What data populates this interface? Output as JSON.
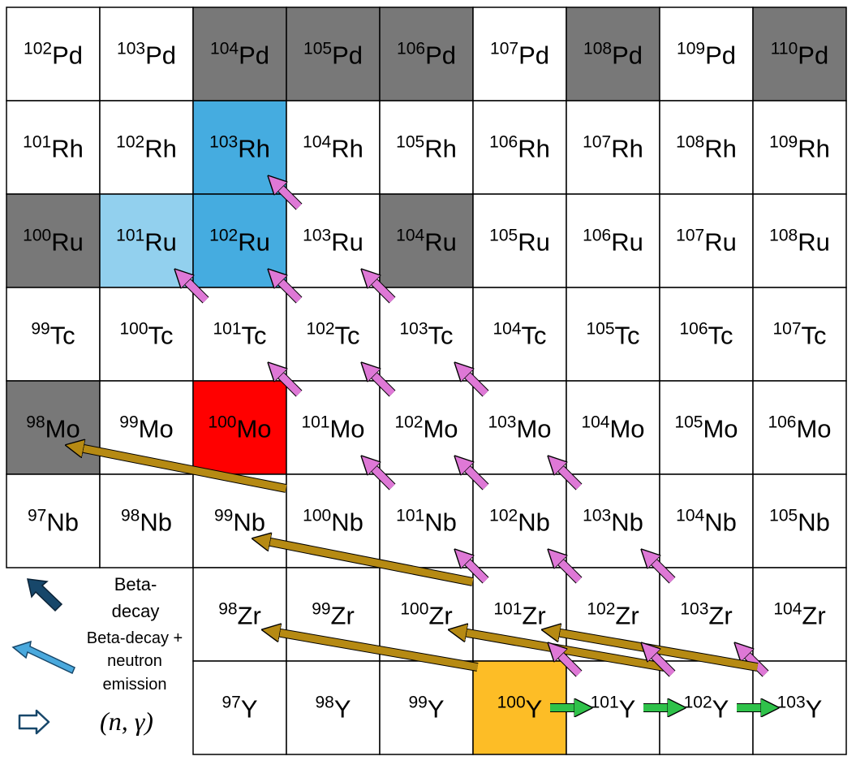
{
  "colors": {
    "stable": "#787878",
    "product_dark": "#45ace0",
    "product_light": "#92d0ee",
    "target": "#ff0000",
    "start": "#fdbd26",
    "empty": "#ffffff",
    "grid": "#000000",
    "arrow_beta": "#de78d6",
    "arrow_beta_n": "#b68a13",
    "arrow_ng": "#2fc24a",
    "legend_beta": "#17476a",
    "legend_beta_n": "#4aa9dd",
    "legend_ng_stroke": "#17476a"
  },
  "rows": [
    {
      "element": "Pd",
      "cells": [
        {
          "mass": "102",
          "symbol": "Pd",
          "fill": "empty"
        },
        {
          "mass": "103",
          "symbol": "Pd",
          "fill": "empty"
        },
        {
          "mass": "104",
          "symbol": "Pd",
          "fill": "stable"
        },
        {
          "mass": "105",
          "symbol": "Pd",
          "fill": "stable"
        },
        {
          "mass": "106",
          "symbol": "Pd",
          "fill": "stable"
        },
        {
          "mass": "107",
          "symbol": "Pd",
          "fill": "empty"
        },
        {
          "mass": "108",
          "symbol": "Pd",
          "fill": "stable"
        },
        {
          "mass": "109",
          "symbol": "Pd",
          "fill": "empty"
        },
        {
          "mass": "110",
          "symbol": "Pd",
          "fill": "stable"
        }
      ]
    },
    {
      "element": "Rh",
      "cells": [
        {
          "mass": "101",
          "symbol": "Rh",
          "fill": "empty"
        },
        {
          "mass": "102",
          "symbol": "Rh",
          "fill": "empty"
        },
        {
          "mass": "103",
          "symbol": "Rh",
          "fill": "product_dark"
        },
        {
          "mass": "104",
          "symbol": "Rh",
          "fill": "empty"
        },
        {
          "mass": "105",
          "symbol": "Rh",
          "fill": "empty"
        },
        {
          "mass": "106",
          "symbol": "Rh",
          "fill": "empty"
        },
        {
          "mass": "107",
          "symbol": "Rh",
          "fill": "empty"
        },
        {
          "mass": "108",
          "symbol": "Rh",
          "fill": "empty"
        },
        {
          "mass": "109",
          "symbol": "Rh",
          "fill": "empty"
        }
      ]
    },
    {
      "element": "Ru",
      "cells": [
        {
          "mass": "100",
          "symbol": "Ru",
          "fill": "stable"
        },
        {
          "mass": "101",
          "symbol": "Ru",
          "fill": "product_light"
        },
        {
          "mass": "102",
          "symbol": "Ru",
          "fill": "product_dark"
        },
        {
          "mass": "103",
          "symbol": "Ru",
          "fill": "empty"
        },
        {
          "mass": "104",
          "symbol": "Ru",
          "fill": "stable"
        },
        {
          "mass": "105",
          "symbol": "Ru",
          "fill": "empty"
        },
        {
          "mass": "106",
          "symbol": "Ru",
          "fill": "empty"
        },
        {
          "mass": "107",
          "symbol": "Ru",
          "fill": "empty"
        },
        {
          "mass": "108",
          "symbol": "Ru",
          "fill": "empty"
        }
      ]
    },
    {
      "element": "Tc",
      "cells": [
        {
          "mass": "99",
          "symbol": "Tc",
          "fill": "empty"
        },
        {
          "mass": "100",
          "symbol": "Tc",
          "fill": "empty"
        },
        {
          "mass": "101",
          "symbol": "Tc",
          "fill": "empty"
        },
        {
          "mass": "102",
          "symbol": "Tc",
          "fill": "empty"
        },
        {
          "mass": "103",
          "symbol": "Tc",
          "fill": "empty"
        },
        {
          "mass": "104",
          "symbol": "Tc",
          "fill": "empty"
        },
        {
          "mass": "105",
          "symbol": "Tc",
          "fill": "empty"
        },
        {
          "mass": "106",
          "symbol": "Tc",
          "fill": "empty"
        },
        {
          "mass": "107",
          "symbol": "Tc",
          "fill": "empty"
        }
      ]
    },
    {
      "element": "Mo",
      "cells": [
        {
          "mass": "98",
          "symbol": "Mo",
          "fill": "stable"
        },
        {
          "mass": "99",
          "symbol": "Mo",
          "fill": "empty"
        },
        {
          "mass": "100",
          "symbol": "Mo",
          "fill": "target"
        },
        {
          "mass": "101",
          "symbol": "Mo",
          "fill": "empty"
        },
        {
          "mass": "102",
          "symbol": "Mo",
          "fill": "empty"
        },
        {
          "mass": "103",
          "symbol": "Mo",
          "fill": "empty"
        },
        {
          "mass": "104",
          "symbol": "Mo",
          "fill": "empty"
        },
        {
          "mass": "105",
          "symbol": "Mo",
          "fill": "empty"
        },
        {
          "mass": "106",
          "symbol": "Mo",
          "fill": "empty"
        }
      ]
    },
    {
      "element": "Nb",
      "cells": [
        {
          "mass": "97",
          "symbol": "Nb",
          "fill": "empty"
        },
        {
          "mass": "98",
          "symbol": "Nb",
          "fill": "empty"
        },
        {
          "mass": "99",
          "symbol": "Nb",
          "fill": "empty"
        },
        {
          "mass": "100",
          "symbol": "Nb",
          "fill": "empty"
        },
        {
          "mass": "101",
          "symbol": "Nb",
          "fill": "empty"
        },
        {
          "mass": "102",
          "symbol": "Nb",
          "fill": "empty"
        },
        {
          "mass": "103",
          "symbol": "Nb",
          "fill": "empty"
        },
        {
          "mass": "104",
          "symbol": "Nb",
          "fill": "empty"
        },
        {
          "mass": "105",
          "symbol": "Nb",
          "fill": "empty"
        }
      ]
    },
    {
      "element": "Zr",
      "cells": [
        {
          "mass": "98",
          "symbol": "Zr",
          "fill": "empty"
        },
        {
          "mass": "99",
          "symbol": "Zr",
          "fill": "empty"
        },
        {
          "mass": "100",
          "symbol": "Zr",
          "fill": "empty"
        },
        {
          "mass": "101",
          "symbol": "Zr",
          "fill": "empty"
        },
        {
          "mass": "102",
          "symbol": "Zr",
          "fill": "empty"
        },
        {
          "mass": "103",
          "symbol": "Zr",
          "fill": "empty"
        },
        {
          "mass": "104",
          "symbol": "Zr",
          "fill": "empty"
        }
      ]
    },
    {
      "element": "Y",
      "cells": [
        {
          "mass": "97",
          "symbol": "Y",
          "fill": "empty"
        },
        {
          "mass": "98",
          "symbol": "Y",
          "fill": "empty"
        },
        {
          "mass": "99",
          "symbol": "Y",
          "fill": "empty"
        },
        {
          "mass": "100",
          "symbol": "Y",
          "fill": "start"
        },
        {
          "mass": "101",
          "symbol": "Y",
          "fill": "empty"
        },
        {
          "mass": "102",
          "symbol": "Y",
          "fill": "empty"
        },
        {
          "mass": "103",
          "symbol": "Y",
          "fill": "empty"
        }
      ]
    }
  ],
  "transitions": [
    {
      "type": "ng",
      "from": "100Y",
      "to": "101Y"
    },
    {
      "type": "ng",
      "from": "101Y",
      "to": "102Y"
    },
    {
      "type": "ng",
      "from": "102Y",
      "to": "103Y"
    },
    {
      "type": "beta",
      "from": "103Y",
      "to": "103Zr"
    },
    {
      "type": "beta_n",
      "from": "103Y",
      "to": "102Zr"
    },
    {
      "type": "beta_n",
      "from": "102Y",
      "to": "101Zr"
    },
    {
      "type": "beta",
      "from": "102Y",
      "to": "102Zr"
    },
    {
      "type": "beta",
      "from": "101Y",
      "to": "101Zr"
    },
    {
      "type": "beta_n",
      "from": "100Y",
      "to": "99Zr"
    },
    {
      "type": "beta",
      "from": "103Zr",
      "to": "103Nb"
    },
    {
      "type": "beta",
      "from": "102Zr",
      "to": "102Nb"
    },
    {
      "type": "beta",
      "from": "101Zr",
      "to": "101Nb"
    },
    {
      "type": "beta_n",
      "from": "101Zr",
      "to": "100Nb"
    },
    {
      "type": "beta",
      "from": "103Nb",
      "to": "103Mo"
    },
    {
      "type": "beta",
      "from": "102Nb",
      "to": "102Mo"
    },
    {
      "type": "beta",
      "from": "101Nb",
      "to": "101Mo"
    },
    {
      "type": "beta_n",
      "from": "100Nb",
      "to": "99Mo"
    },
    {
      "type": "beta",
      "from": "103Mo",
      "to": "103Tc"
    },
    {
      "type": "beta",
      "from": "102Mo",
      "to": "102Tc"
    },
    {
      "type": "beta",
      "from": "101Mo",
      "to": "101Tc"
    },
    {
      "type": "beta",
      "from": "103Tc",
      "to": "103Ru"
    },
    {
      "type": "beta",
      "from": "102Tc",
      "to": "102Ru"
    },
    {
      "type": "beta",
      "from": "101Tc",
      "to": "101Ru"
    },
    {
      "type": "beta",
      "from": "103Ru",
      "to": "103Rh"
    }
  ],
  "legend": {
    "beta_line1": "Beta-",
    "beta_line2": "decay",
    "beta_n_line1": "Beta-decay +",
    "beta_n_line2": "neutron",
    "beta_n_line3": "emission",
    "ng_label": "(n, γ)"
  }
}
